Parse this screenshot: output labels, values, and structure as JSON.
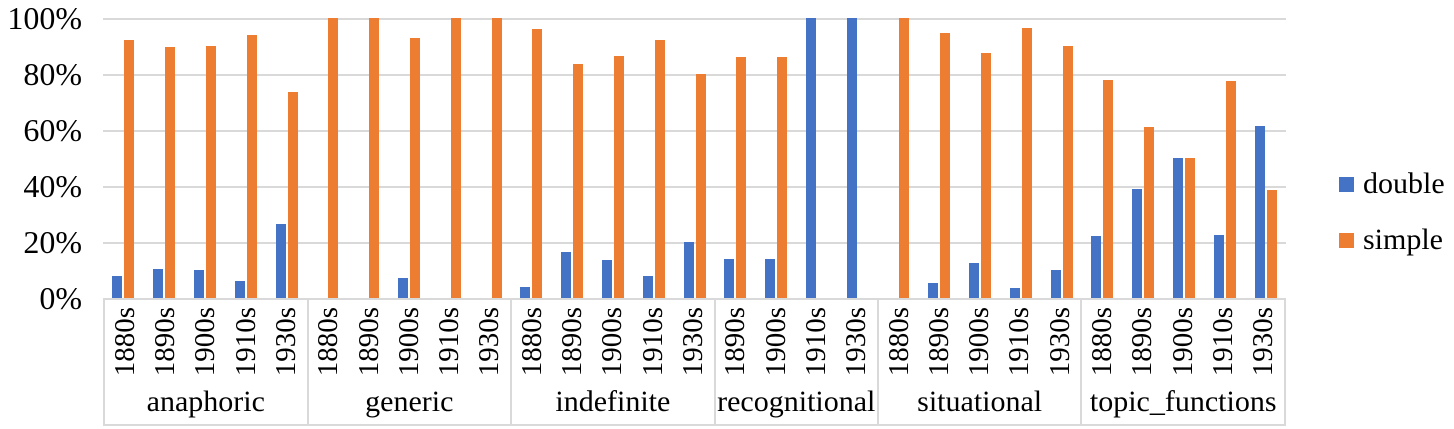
{
  "chart_data": {
    "type": "bar",
    "title": "",
    "xlabel": "",
    "ylabel": "",
    "ylim": [
      0,
      100
    ],
    "yticks": [
      0,
      20,
      40,
      60,
      80,
      100
    ],
    "ytick_suffix": "%",
    "grid": true,
    "legend_position": "right",
    "legend": [
      {
        "name": "double",
        "color": "#4472C4"
      },
      {
        "name": "simple",
        "color": "#ED7D31"
      }
    ],
    "gridline_color": "#d9d9d9",
    "groups": [
      {
        "label": "anaphoric",
        "decades": [
          "1880s",
          "1890s",
          "1900s",
          "1910s",
          "1930s"
        ],
        "double": [
          8,
          10.5,
          10,
          6,
          26.5
        ],
        "simple": [
          92,
          89.5,
          90,
          94,
          73.5
        ]
      },
      {
        "label": "generic",
        "decades": [
          "1880s",
          "1890s",
          "1900s",
          "1910s",
          "1930s"
        ],
        "double": [
          0,
          0,
          7,
          0,
          0
        ],
        "simple": [
          100,
          100,
          93,
          100,
          100
        ]
      },
      {
        "label": "indefinite",
        "decades": [
          "1880s",
          "1890s",
          "1900s",
          "1910s",
          "1930s"
        ],
        "double": [
          4,
          16.5,
          13.5,
          8,
          20
        ],
        "simple": [
          96,
          83.5,
          86.5,
          92,
          80
        ]
      },
      {
        "label": "recognitional",
        "decades": [
          "1890s",
          "1900s",
          "1910s",
          "1930s"
        ],
        "double": [
          14,
          14,
          100,
          100
        ],
        "simple": [
          86,
          86,
          0,
          0
        ]
      },
      {
        "label": "situational",
        "decades": [
          "1880s",
          "1890s",
          "1900s",
          "1910s",
          "1930s"
        ],
        "double": [
          0,
          5.5,
          12.5,
          3.5,
          10
        ],
        "simple": [
          100,
          94.5,
          87.5,
          96.5,
          90
        ]
      },
      {
        "label": "topic_functions",
        "decades": [
          "1880s",
          "1890s",
          "1900s",
          "1910s",
          "1930s"
        ],
        "double": [
          22,
          39,
          50,
          22.5,
          61.5
        ],
        "simple": [
          78,
          61,
          50,
          77.5,
          38.5
        ]
      }
    ]
  }
}
